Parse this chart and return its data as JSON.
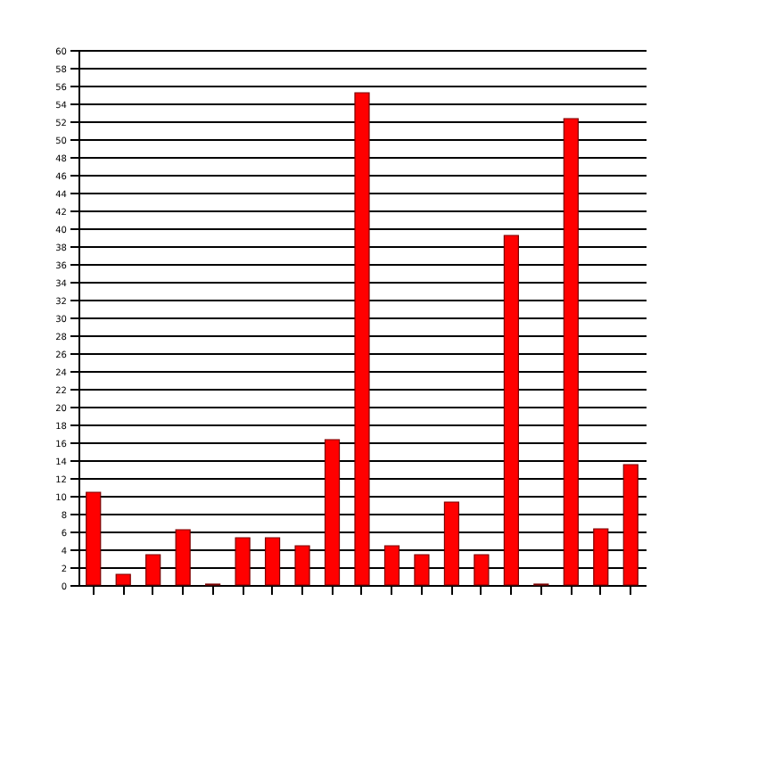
{
  "chart_data": {
    "type": "bar",
    "categories": [
      null,
      null,
      null,
      null,
      null,
      null,
      null,
      null,
      null,
      null,
      null,
      null,
      null,
      null,
      null,
      null,
      null,
      null,
      null
    ],
    "values": [
      10.4,
      1.2,
      3.4,
      6.2,
      0.1,
      5.3,
      5.3,
      4.4,
      16.3,
      55.2,
      4.4,
      3.4,
      9.3,
      3.4,
      39.2,
      0.1,
      52.3,
      6.3,
      13.5
    ],
    "color": "#ff0000",
    "ylim": [
      0,
      60
    ],
    "yticks": [
      0,
      2,
      4,
      6,
      8,
      10,
      12,
      14,
      16,
      18,
      20,
      22,
      24,
      26,
      28,
      30,
      32,
      34,
      36,
      38,
      40,
      42,
      44,
      46,
      48,
      50,
      52,
      54,
      56,
      58,
      60
    ],
    "grid": "y"
  }
}
